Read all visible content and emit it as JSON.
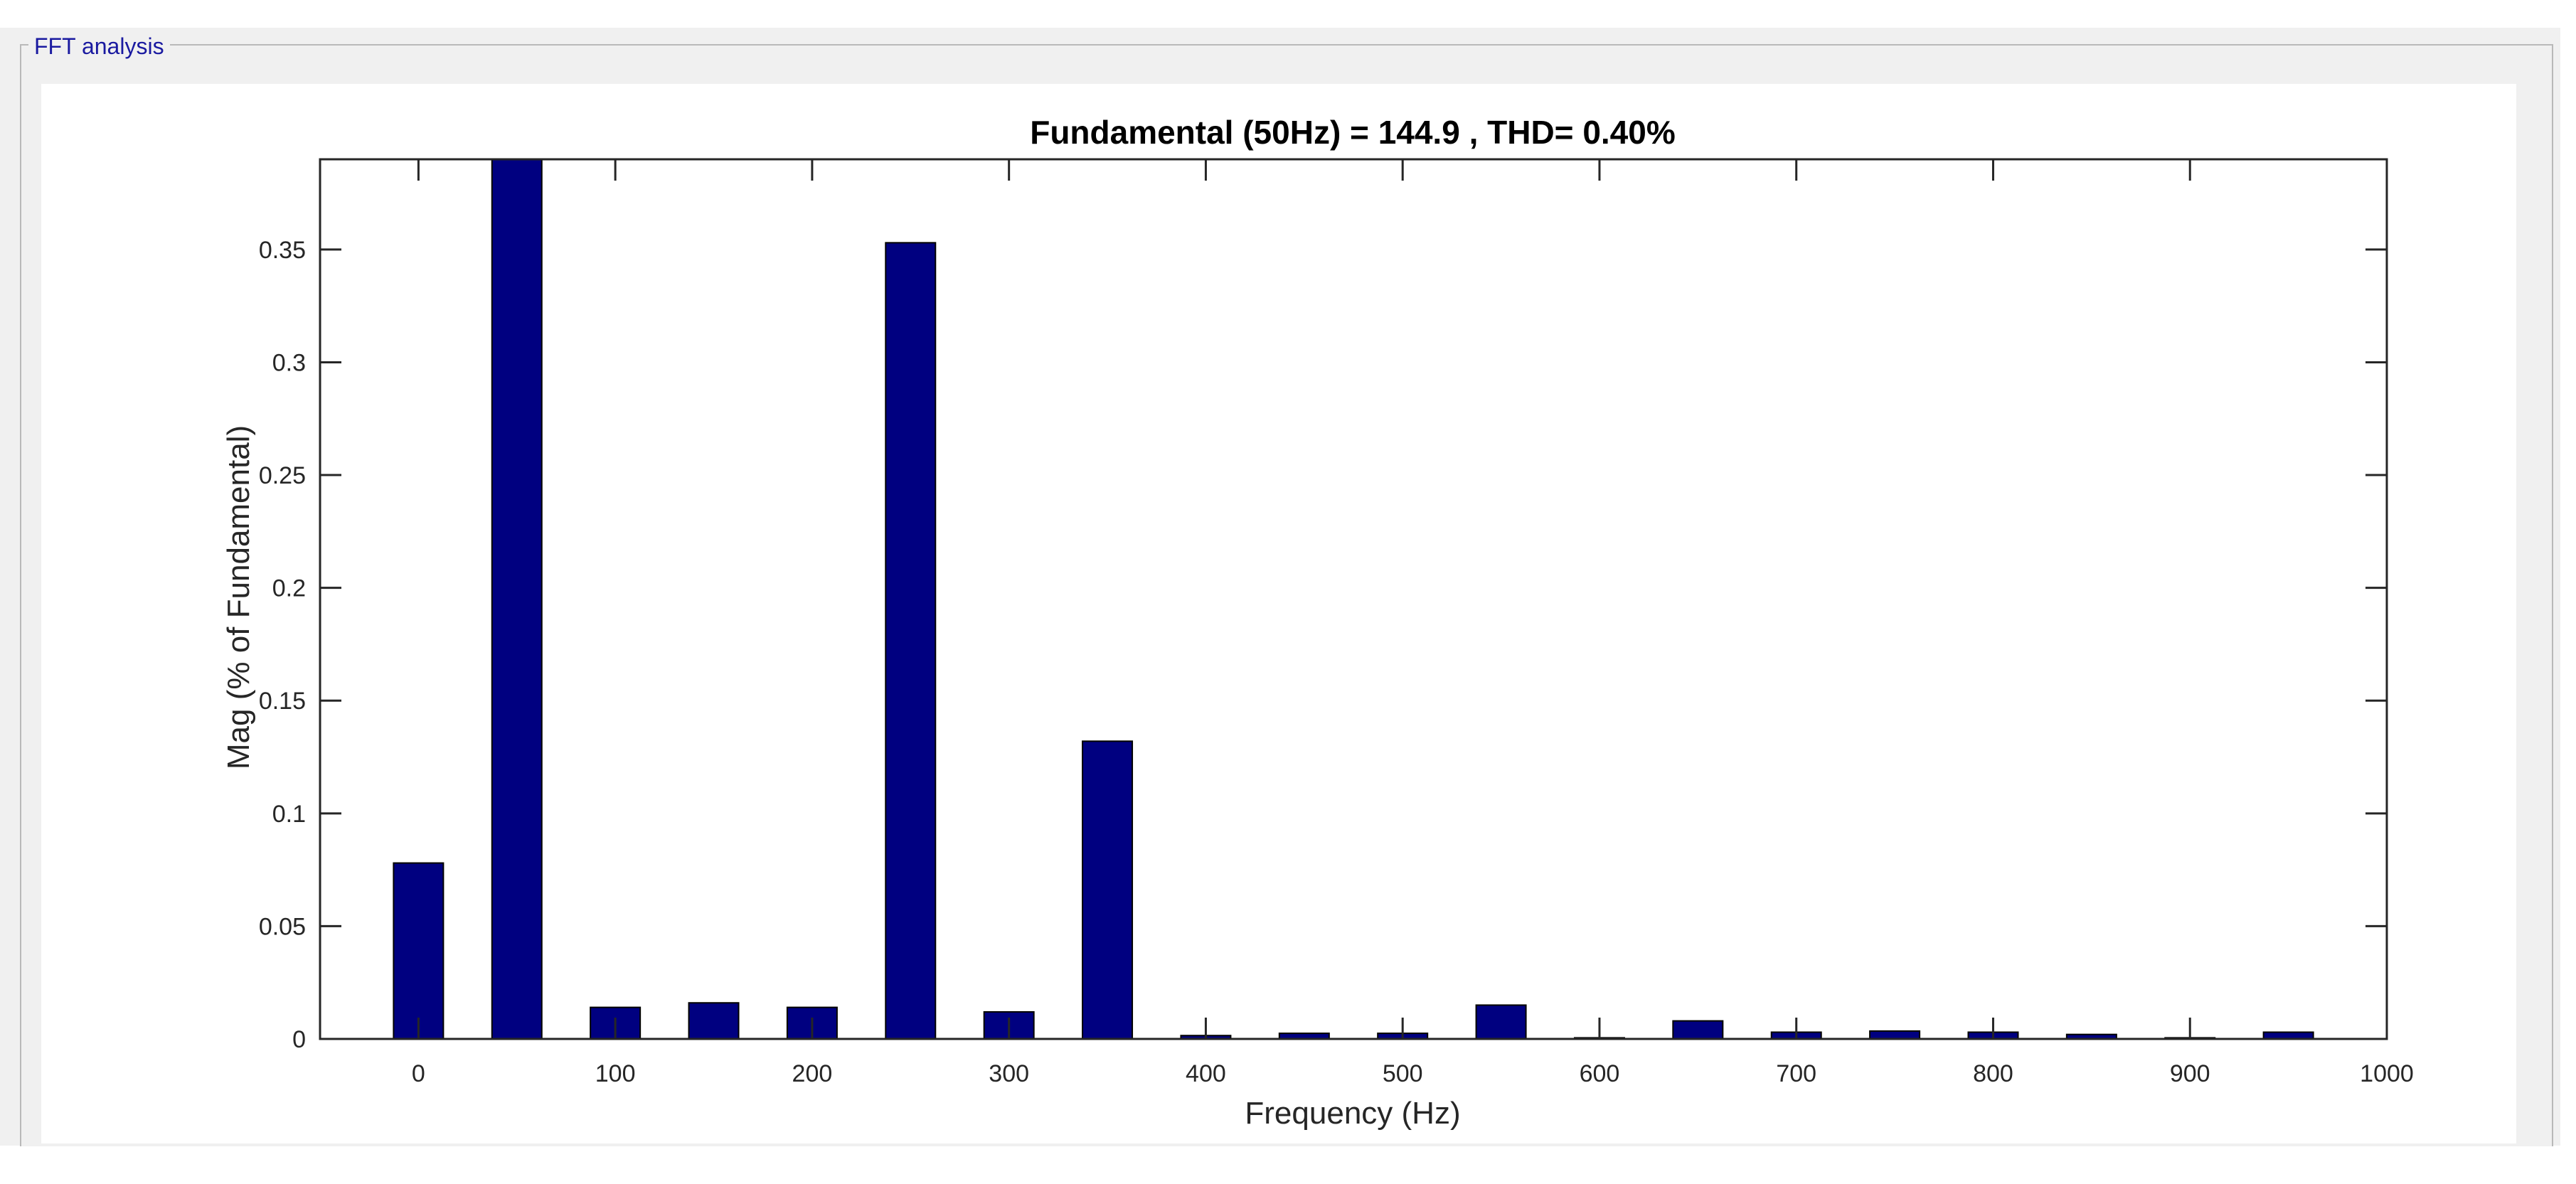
{
  "panel": {
    "title": "FFT analysis"
  },
  "chart_data": {
    "type": "bar",
    "title": "Fundamental (50Hz) = 144.9 , THD= 0.40%",
    "xlabel": "Frequency (Hz)",
    "ylabel": "Mag (% of Fundamental)",
    "xlim": [
      -50,
      1000
    ],
    "ylim": [
      0,
      0.39
    ],
    "x_ticks": [
      "0",
      "100",
      "200",
      "300",
      "400",
      "500",
      "600",
      "700",
      "800",
      "900",
      "1000"
    ],
    "y_ticks": [
      "0",
      "0.05",
      "0.1",
      "0.15",
      "0.2",
      "0.25",
      "0.3",
      "0.35"
    ],
    "bar_color": "#000080",
    "grid": false,
    "x": [
      0,
      50,
      100,
      150,
      200,
      250,
      300,
      350,
      400,
      450,
      500,
      550,
      600,
      650,
      700,
      750,
      800,
      850,
      900,
      950
    ],
    "values": [
      0.078,
      0.39,
      0.014,
      0.016,
      0.014,
      0.353,
      0.012,
      0.132,
      0.0015,
      0.0025,
      0.0025,
      0.015,
      0.0005,
      0.008,
      0.003,
      0.0035,
      0.003,
      0.002,
      0.0005,
      0.003
    ]
  }
}
